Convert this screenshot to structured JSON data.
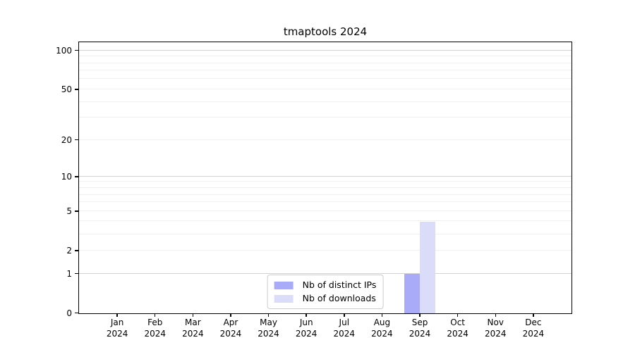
{
  "chart_data": {
    "type": "bar",
    "title": "tmaptools 2024",
    "categories": [
      "Jan",
      "Feb",
      "Mar",
      "Apr",
      "May",
      "Jun",
      "Jul",
      "Aug",
      "Sep",
      "Oct",
      "Nov",
      "Dec"
    ],
    "year": "2024",
    "series": [
      {
        "name": "Nb of distinct IPs",
        "color": "#a9abf8",
        "values": [
          0,
          0,
          0,
          0,
          0,
          0,
          0,
          0,
          1,
          0,
          0,
          0
        ]
      },
      {
        "name": "Nb of downloads",
        "color": "#dbdcf9",
        "values": [
          0,
          0,
          0,
          0,
          0,
          0,
          0,
          0,
          4,
          0,
          0,
          0
        ]
      }
    ],
    "xlabel": "",
    "ylabel": "",
    "y_scale": "log1p",
    "ylim": [
      0,
      115
    ],
    "y_tick_values": [
      0,
      1,
      2,
      5,
      10,
      20,
      50,
      100
    ],
    "y_major_gridlines": [
      1,
      10,
      100
    ],
    "y_minor_gridlines": [
      2,
      3,
      4,
      5,
      6,
      7,
      8,
      9,
      20,
      30,
      40,
      50,
      60,
      70,
      80,
      90
    ],
    "legend": {
      "position": "lower center"
    },
    "grid": "on",
    "colors": {
      "axis": "#000000",
      "text": "#000000",
      "major_grid": "#d2d2d2",
      "minor_grid": "#f0f0f0",
      "background": "#ffffff"
    }
  }
}
